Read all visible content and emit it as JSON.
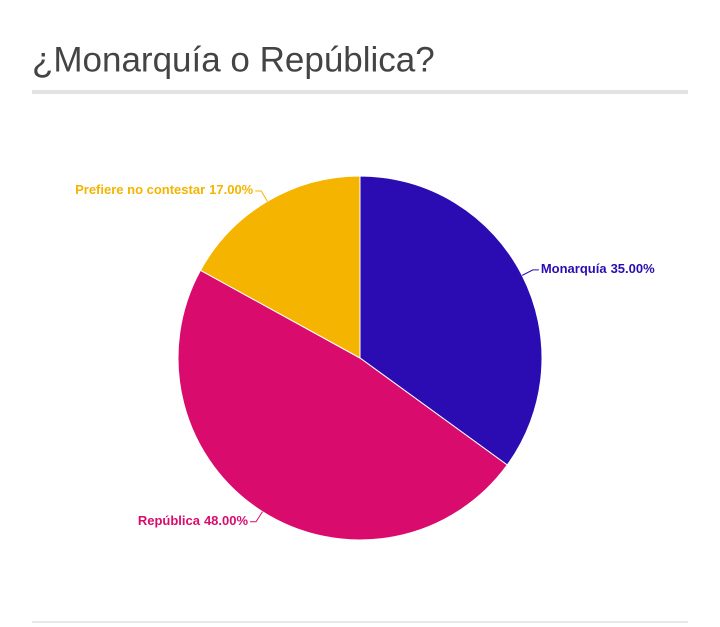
{
  "chart_data": {
    "type": "pie",
    "title": "¿Monarquía o República?",
    "categories": [
      "Monarquía",
      "República",
      "Prefiere no contestar"
    ],
    "values": [
      35,
      48,
      17
    ],
    "value_labels": [
      "35.00%",
      "48.00%",
      "17.00%"
    ],
    "colors": [
      "#2b0cb3",
      "#d90c6e",
      "#f4b400"
    ]
  }
}
